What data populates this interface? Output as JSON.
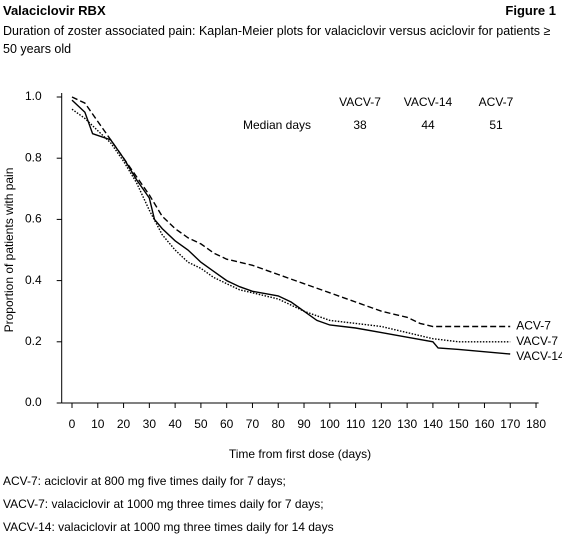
{
  "header": {
    "title": "Valaciclovir RBX",
    "figure": "Figure 1"
  },
  "chart_data": {
    "type": "line",
    "title": "Duration of zoster associated pain: Kaplan-Meier plots for valaciclovir versus aciclovir for patients ≥ 50 years old",
    "xlabel": "Time from first dose (days)",
    "ylabel": "Proportion of patients with pain",
    "xlim": [
      -4,
      181
    ],
    "ylim": [
      0,
      1
    ],
    "xticks": [
      0,
      10,
      20,
      30,
      40,
      50,
      60,
      70,
      80,
      90,
      100,
      110,
      120,
      130,
      140,
      150,
      160,
      170,
      180
    ],
    "yticks": [
      {
        "value": 0,
        "label": "0.0"
      },
      0.2,
      0.4,
      0.6,
      0.8,
      {
        "value": 1,
        "label": "1.0"
      }
    ],
    "series": [
      {
        "name": "ACV-7",
        "color": "#000000",
        "dash": "dashed",
        "x": [
          0,
          5,
          10,
          15,
          20,
          25,
          30,
          35,
          40,
          45,
          50,
          55,
          60,
          65,
          70,
          80,
          90,
          100,
          110,
          120,
          125,
          130,
          135,
          140,
          150,
          170
        ],
        "values": [
          1.0,
          0.98,
          0.92,
          0.86,
          0.8,
          0.74,
          0.68,
          0.61,
          0.57,
          0.54,
          0.52,
          0.49,
          0.47,
          0.46,
          0.45,
          0.42,
          0.39,
          0.36,
          0.33,
          0.3,
          0.29,
          0.28,
          0.26,
          0.25,
          0.25,
          0.25
        ]
      },
      {
        "name": "VACV-7",
        "color": "#000000",
        "dash": "dotted",
        "x": [
          0,
          5,
          10,
          15,
          20,
          25,
          30,
          35,
          40,
          45,
          50,
          55,
          60,
          65,
          70,
          80,
          90,
          100,
          110,
          120,
          130,
          140,
          150,
          170
        ],
        "values": [
          0.96,
          0.93,
          0.89,
          0.85,
          0.79,
          0.72,
          0.63,
          0.55,
          0.5,
          0.46,
          0.44,
          0.41,
          0.39,
          0.37,
          0.36,
          0.34,
          0.3,
          0.27,
          0.26,
          0.25,
          0.23,
          0.21,
          0.2,
          0.2
        ]
      },
      {
        "name": "VACV-14",
        "color": "#000000",
        "dash": "solid",
        "x": [
          0,
          5,
          8,
          15,
          20,
          25,
          30,
          32,
          35,
          40,
          45,
          50,
          55,
          60,
          65,
          70,
          80,
          85,
          90,
          95,
          100,
          110,
          120,
          130,
          140,
          142,
          150,
          170
        ],
        "values": [
          0.99,
          0.95,
          0.88,
          0.86,
          0.8,
          0.73,
          0.67,
          0.6,
          0.57,
          0.53,
          0.5,
          0.46,
          0.43,
          0.4,
          0.38,
          0.365,
          0.35,
          0.33,
          0.3,
          0.27,
          0.255,
          0.245,
          0.23,
          0.215,
          0.2,
          0.18,
          0.175,
          0.16
        ]
      }
    ],
    "median_table": {
      "row_label": "Median days",
      "columns": [
        "VACV-7",
        "VACV-14",
        "ACV-7"
      ],
      "values": [
        38,
        44,
        51
      ]
    }
  },
  "notes": [
    "ACV-7: aciclovir at 800 mg five times daily for 7 days;",
    "VACV-7: valaciclovir at 1000 mg three times daily for 7 days;",
    "VACV-14: valaciclovir at 1000 mg three times daily for 14 days"
  ]
}
